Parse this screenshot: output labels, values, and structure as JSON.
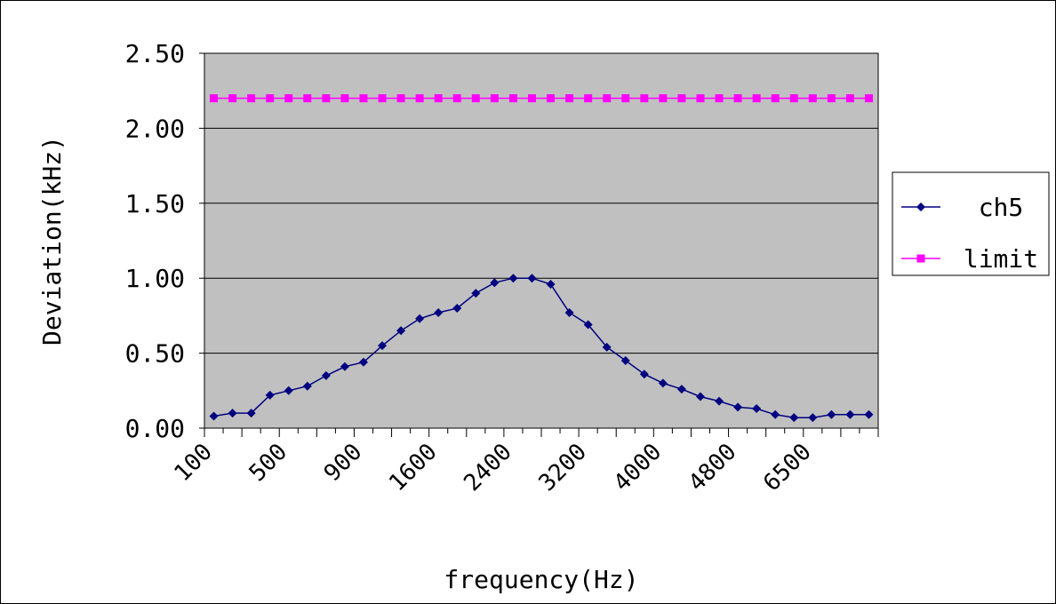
{
  "chart_data": {
    "type": "line",
    "title": "",
    "xlabel": "frequency(Hz)",
    "ylabel": "Deviation(kHz)",
    "ylim": [
      0,
      2.5
    ],
    "y_ticks": [
      "0.00",
      "0.50",
      "1.00",
      "1.50",
      "2.00",
      "2.50"
    ],
    "x_tick_labels": [
      "100",
      "500",
      "900",
      "1600",
      "2400",
      "3200",
      "4000",
      "4800",
      "6500"
    ],
    "grid": "horizontal",
    "plot_background": "#c0c0c0",
    "legend_position": "right",
    "series": [
      {
        "name": "ch5",
        "color": "#000080",
        "marker": "diamond",
        "values": [
          0.08,
          0.1,
          0.1,
          0.22,
          0.25,
          0.28,
          0.35,
          0.41,
          0.44,
          0.55,
          0.65,
          0.73,
          0.77,
          0.8,
          0.9,
          0.97,
          1.0,
          1.0,
          0.96,
          0.77,
          0.69,
          0.54,
          0.45,
          0.36,
          0.3,
          0.26,
          0.21,
          0.18,
          0.14,
          0.13,
          0.09,
          0.07,
          0.07,
          0.09,
          0.09,
          0.09
        ]
      },
      {
        "name": "limit",
        "color": "#ff00ff",
        "marker": "square",
        "values": [
          2.2,
          2.2,
          2.2,
          2.2,
          2.2,
          2.2,
          2.2,
          2.2,
          2.2,
          2.2,
          2.2,
          2.2,
          2.2,
          2.2,
          2.2,
          2.2,
          2.2,
          2.2,
          2.2,
          2.2,
          2.2,
          2.2,
          2.2,
          2.2,
          2.2,
          2.2,
          2.2,
          2.2,
          2.2,
          2.2,
          2.2,
          2.2,
          2.2,
          2.2,
          2.2,
          2.2
        ]
      }
    ]
  }
}
